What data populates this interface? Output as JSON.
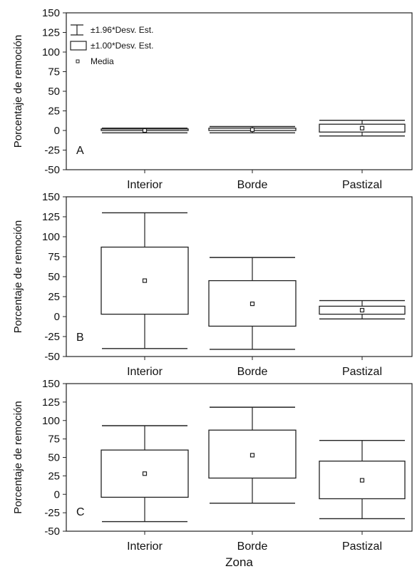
{
  "chart_data": [
    {
      "type": "boxplot",
      "panel_label": "A",
      "ylabel": "Porcentaje de remoción",
      "xlabel": "",
      "ylim": [
        -50,
        150
      ],
      "yticks": [
        -50,
        -25,
        0,
        25,
        50,
        75,
        100,
        125,
        150
      ],
      "categories": [
        "Interior",
        "Borde",
        "Pastizal"
      ],
      "series": [
        {
          "category": "Interior",
          "mean": 0,
          "sd_low": 0,
          "sd_high": 2,
          "ci_low": -3,
          "ci_high": 3
        },
        {
          "category": "Borde",
          "mean": 1,
          "sd_low": 0,
          "sd_high": 3,
          "ci_low": -3,
          "ci_high": 5
        },
        {
          "category": "Pastizal",
          "mean": 3,
          "sd_low": -2,
          "sd_high": 8,
          "ci_low": -7,
          "ci_high": 13
        }
      ],
      "legend": [
        {
          "symbol": "whisker",
          "label": "±1.96*Desv. Est."
        },
        {
          "symbol": "box",
          "label": "±1.00*Desv. Est."
        },
        {
          "symbol": "point",
          "label": "Media"
        }
      ]
    },
    {
      "type": "boxplot",
      "panel_label": "B",
      "ylabel": "Porcentaje de remoción",
      "xlabel": "",
      "ylim": [
        -50,
        150
      ],
      "yticks": [
        -50,
        -25,
        0,
        25,
        50,
        75,
        100,
        125,
        150
      ],
      "categories": [
        "Interior",
        "Borde",
        "Pastizal"
      ],
      "series": [
        {
          "category": "Interior",
          "mean": 45,
          "sd_low": 3,
          "sd_high": 87,
          "ci_low": -40,
          "ci_high": 130
        },
        {
          "category": "Borde",
          "mean": 16,
          "sd_low": -12,
          "sd_high": 45,
          "ci_low": -41,
          "ci_high": 74
        },
        {
          "category": "Pastizal",
          "mean": 8,
          "sd_low": 3,
          "sd_high": 13,
          "ci_low": -3,
          "ci_high": 20
        }
      ]
    },
    {
      "type": "boxplot",
      "panel_label": "C",
      "ylabel": "Porcentaje de remoción",
      "xlabel": "Zona",
      "ylim": [
        -50,
        150
      ],
      "yticks": [
        -50,
        -25,
        0,
        25,
        50,
        75,
        100,
        125,
        150
      ],
      "categories": [
        "Interior",
        "Borde",
        "Pastizal"
      ],
      "series": [
        {
          "category": "Interior",
          "mean": 28,
          "sd_low": -4,
          "sd_high": 60,
          "ci_low": -37,
          "ci_high": 93
        },
        {
          "category": "Borde",
          "mean": 53,
          "sd_low": 22,
          "sd_high": 87,
          "ci_low": -12,
          "ci_high": 118
        },
        {
          "category": "Pastizal",
          "mean": 19,
          "sd_low": -6,
          "sd_high": 45,
          "ci_low": -33,
          "ci_high": 73
        }
      ]
    }
  ]
}
